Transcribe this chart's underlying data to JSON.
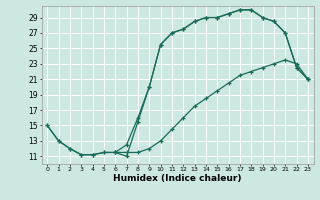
{
  "xlabel": "Humidex (Indice chaleur)",
  "bg_color": "#cce8e0",
  "grid_color": "#ffffff",
  "line_color": "#1a6b5a",
  "xlim": [
    -0.5,
    23.5
  ],
  "ylim": [
    10.0,
    30.5
  ],
  "xticks": [
    0,
    1,
    2,
    3,
    4,
    5,
    6,
    7,
    8,
    9,
    10,
    11,
    12,
    13,
    14,
    15,
    16,
    17,
    18,
    19,
    20,
    21,
    22,
    23
  ],
  "yticks": [
    11,
    13,
    15,
    17,
    19,
    21,
    23,
    25,
    27,
    29
  ],
  "curve1_x": [
    0,
    1,
    2,
    3,
    4,
    5,
    6,
    7,
    8,
    9,
    10,
    11,
    12,
    13,
    14,
    15,
    16,
    17,
    18,
    19,
    20,
    21,
    22,
    23
  ],
  "curve1_y": [
    15.0,
    13.0,
    12.0,
    11.2,
    11.2,
    11.5,
    11.5,
    11.5,
    11.5,
    12.0,
    13.0,
    14.5,
    16.0,
    17.5,
    18.5,
    19.5,
    20.5,
    21.5,
    22.0,
    22.5,
    23.0,
    23.5,
    23.0,
    21.0
  ],
  "curve2_x": [
    0,
    1,
    2,
    3,
    4,
    5,
    6,
    7,
    8,
    9,
    10,
    11,
    12,
    13,
    14,
    15,
    16,
    17,
    18,
    19,
    20,
    21,
    22,
    23
  ],
  "curve2_y": [
    15.0,
    13.0,
    12.0,
    11.2,
    11.2,
    11.5,
    11.5,
    12.5,
    16.0,
    20.0,
    25.5,
    27.0,
    27.5,
    28.5,
    29.0,
    29.0,
    29.5,
    30.0,
    30.0,
    29.0,
    28.5,
    27.0,
    22.5,
    21.0
  ],
  "curve3_x": [
    6,
    7,
    8,
    9,
    10,
    11,
    12,
    13,
    14,
    15,
    16,
    17,
    18,
    19,
    20,
    21,
    22,
    23
  ],
  "curve3_y": [
    11.5,
    11.0,
    15.5,
    20.0,
    25.5,
    27.0,
    27.5,
    28.5,
    29.0,
    29.0,
    29.5,
    30.0,
    30.0,
    29.0,
    28.5,
    27.0,
    22.5,
    21.0
  ]
}
